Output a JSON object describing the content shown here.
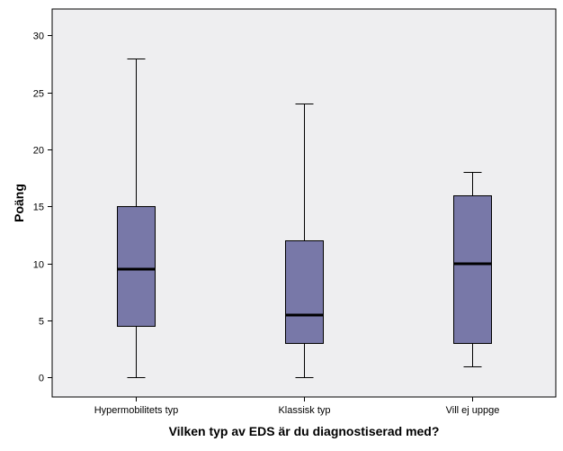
{
  "chart_data": {
    "type": "box",
    "title": "",
    "xlabel": "Vilken typ av EDS är du diagnostiserad med?",
    "ylabel": "Poäng",
    "ylim": [
      -1.7,
      32.3
    ],
    "yticks": [
      0,
      5,
      10,
      15,
      20,
      25,
      30
    ],
    "grid": false,
    "categories": [
      "Hypermobilitets typ",
      "Klassisk typ",
      "Vill ej uppge"
    ],
    "boxes": [
      {
        "category": "Hypermobilitets typ",
        "whisker_low": 0,
        "q1": 4.5,
        "median": 9.5,
        "q3": 15,
        "whisker_high": 28
      },
      {
        "category": "Klassisk typ",
        "whisker_low": 0,
        "q1": 3,
        "median": 5.5,
        "q3": 12,
        "whisker_high": 24
      },
      {
        "category": "Vill ej uppge",
        "whisker_low": 1,
        "q1": 3,
        "median": 10,
        "q3": 16,
        "whisker_high": 18
      }
    ],
    "colors": {
      "plot_background": "#eeeef0",
      "box_fill": "#7878a8",
      "stroke": "#000000"
    }
  }
}
